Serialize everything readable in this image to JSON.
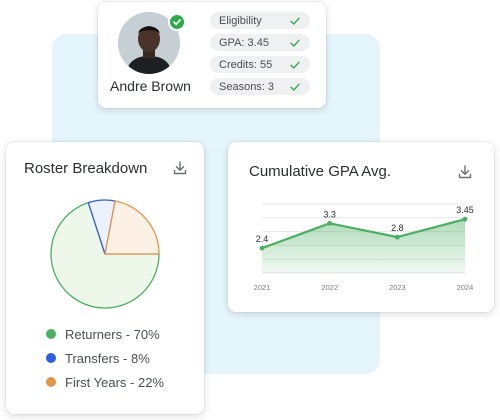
{
  "profile": {
    "name": "Andre Brown",
    "stats": [
      {
        "label": "Eligibility"
      },
      {
        "label": "GPA: 3.45"
      },
      {
        "label": "Credits: 55"
      },
      {
        "label": "Seasons: 3"
      }
    ]
  },
  "roster": {
    "title": "Roster Breakdown",
    "legend": [
      {
        "label": "Returners - 70%",
        "color": "#4caf62"
      },
      {
        "label": "Transfers - 8%",
        "color": "#2e5fd8"
      },
      {
        "label": "First Years - 22%",
        "color": "#e0954a"
      }
    ]
  },
  "gpa": {
    "title": "Cumulative GPA Avg."
  },
  "chart_data": [
    {
      "type": "pie",
      "title": "Roster Breakdown",
      "slices": [
        {
          "label": "Returners",
          "value": 70,
          "fill": "#edf8ea",
          "stroke": "#4caf62"
        },
        {
          "label": "Transfers",
          "value": 8,
          "fill": "#edf1fd",
          "stroke": "#2e5fd8"
        },
        {
          "label": "First Years",
          "value": 22,
          "fill": "#fdf1e5",
          "stroke": "#e0954a"
        }
      ]
    },
    {
      "type": "area",
      "title": "Cumulative GPA Avg.",
      "categories": [
        "2021",
        "2022",
        "2023",
        "2024"
      ],
      "values": [
        2.4,
        3.3,
        2.8,
        3.45
      ],
      "value_labels": [
        "2.4",
        "3.3",
        "2.8",
        "3.45"
      ],
      "ylim": [
        1.5,
        4
      ],
      "grid": true,
      "color": "#4caf62"
    }
  ]
}
